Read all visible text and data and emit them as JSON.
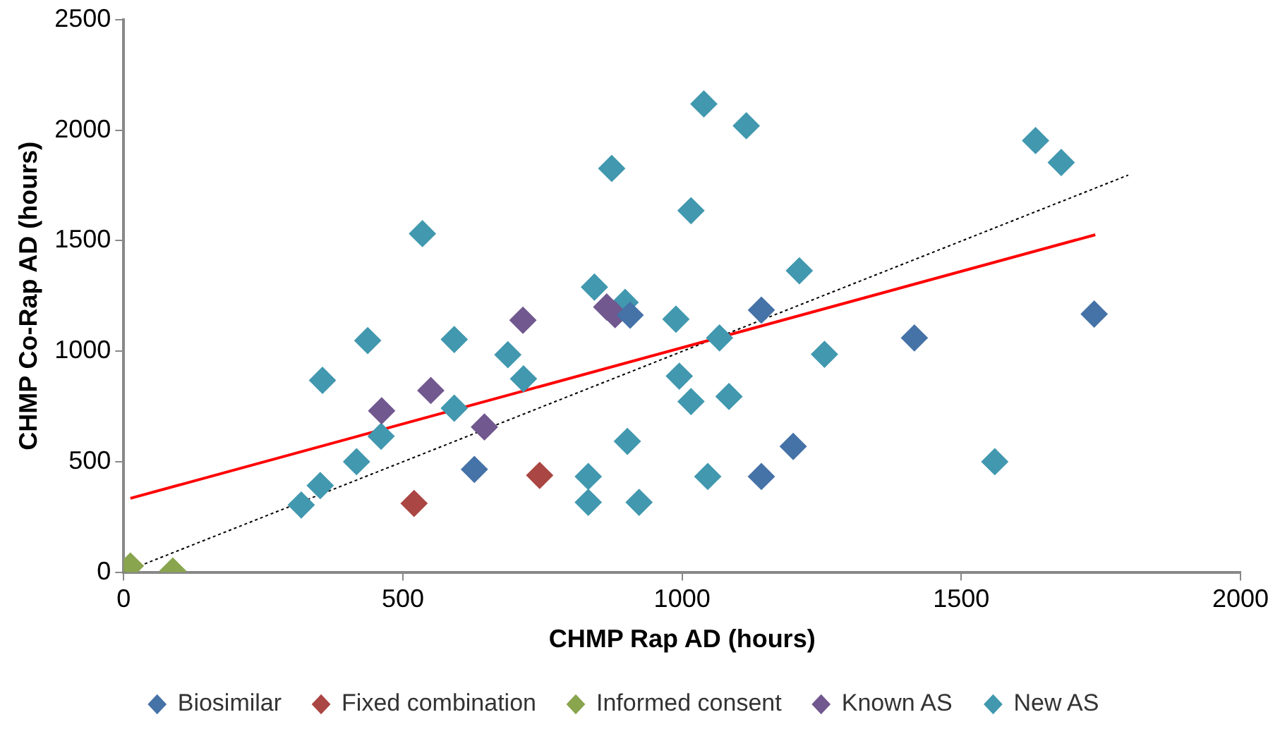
{
  "chart_data": {
    "type": "scatter",
    "xlabel": "CHMP Rap AD (hours)",
    "ylabel": "CHMP Co-Rap AD (hours)",
    "xlim": [
      0,
      2000
    ],
    "xticks": [
      0,
      500,
      1000,
      1500,
      2000
    ],
    "ylim": [
      0,
      2500
    ],
    "yticks": [
      0,
      500,
      1000,
      1500,
      2000,
      2500
    ],
    "grid": false,
    "legend": "bottom",
    "marker": "diamond",
    "series": [
      {
        "name": "Biosimilar",
        "color": "#4572a7",
        "x": [
          628,
          907,
          1142,
          1416,
          1738,
          1199,
          1142
        ],
        "values": [
          465,
          1163,
          1186,
          1060,
          1168,
          569,
          433
        ]
      },
      {
        "name": "Fixed combination",
        "color": "#aa4643",
        "x": [
          520,
          745
        ],
        "values": [
          311,
          438
        ]
      },
      {
        "name": "Informed consent",
        "color": "#89a54e",
        "x": [
          12,
          88
        ],
        "values": [
          28,
          5
        ]
      },
      {
        "name": "Known AS",
        "color": "#71588f",
        "x": [
          462,
          550,
          646,
          715,
          865,
          880
        ],
        "values": [
          730,
          822,
          657,
          1140,
          1200,
          1165
        ]
      },
      {
        "name": "New AS",
        "color": "#4198af",
        "x": [
          318,
          352,
          417,
          356,
          437,
          461,
          535,
          592,
          592,
          688,
          716,
          832,
          832,
          902,
          923,
          843,
          874,
          898,
          989,
          995,
          1016,
          1016,
          1039,
          1115,
          1210,
          1067,
          1084,
          1255,
          1046,
          1560,
          1633,
          1679
        ],
        "values": [
          304,
          392,
          500,
          868,
          1048,
          615,
          1532,
          1053,
          742,
          984,
          875,
          433,
          316,
          592,
          316,
          1290,
          1827,
          1221,
          1145,
          887,
          772,
          1636,
          2119,
          2020,
          1364,
          1060,
          795,
          986,
          433,
          500,
          1953,
          1854
        ]
      },
      {
        "type": "line",
        "color": "#ff0000",
        "line_style": "solid",
        "marker": "none",
        "x": [
          12,
          1740
        ],
        "values": [
          334,
          1527
        ]
      },
      {
        "type": "line",
        "color": "#000000",
        "line_style": "dotted",
        "marker": "none",
        "x": [
          0,
          1799
        ],
        "values": [
          0,
          1797
        ]
      }
    ]
  }
}
